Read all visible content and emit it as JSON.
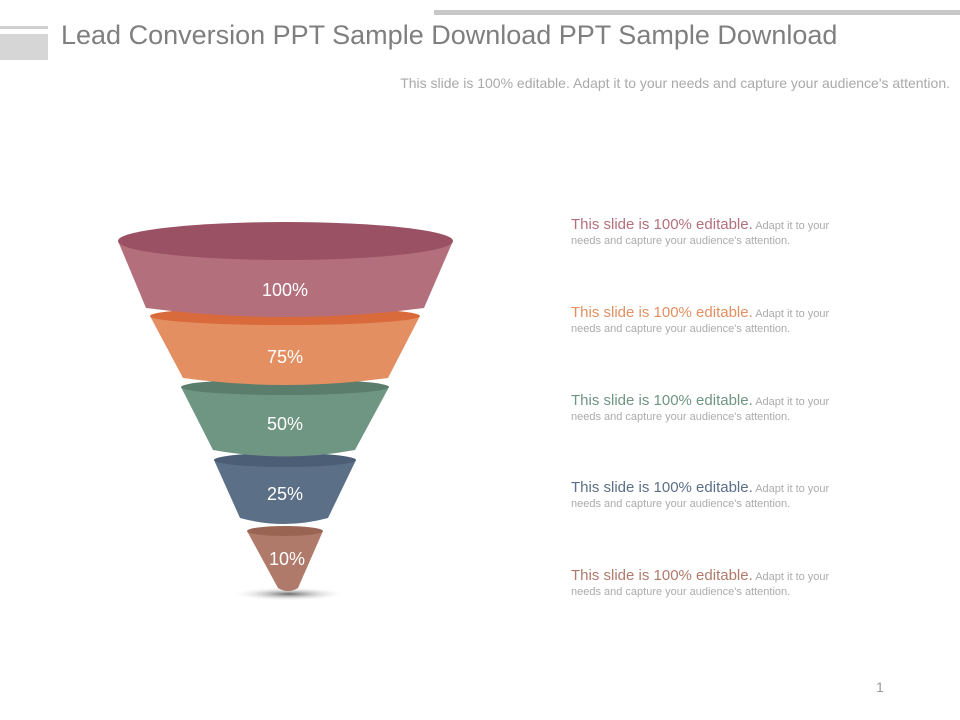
{
  "slide": {
    "title": "Lead Conversion PPT Sample Download PPT Sample Download",
    "subtitle": "This slide is 100% editable. Adapt it to your needs and capture your audience's attention.",
    "page_number": "1"
  },
  "funnel": {
    "stages": [
      {
        "label": "100%",
        "color": "#b46f7c",
        "rim": "#9a5163"
      },
      {
        "label": "75%",
        "color": "#e48f62",
        "rim": "#d96a3c"
      },
      {
        "label": "50%",
        "color": "#6f9583",
        "rim": "#5a7d6c"
      },
      {
        "label": "25%",
        "color": "#5b6f87",
        "rim": "#4c5e75"
      },
      {
        "label": "10%",
        "color": "#b07a6a",
        "rim": "#9a6453"
      }
    ]
  },
  "descriptions": [
    {
      "head": "This slide is 100% editable.",
      "body": " Adapt it to your needs and capture your audience's attention.",
      "color": "#b46f7c"
    },
    {
      "head": "This slide is 100% editable.",
      "body": " Adapt it to your needs and capture your audience's attention.",
      "color": "#e48f62"
    },
    {
      "head": "This slide is 100% editable.",
      "body": " Adapt it to your needs and capture your audience's attention.",
      "color": "#6f9583"
    },
    {
      "head": "This slide is 100% editable.",
      "body": " Adapt it to your needs and capture your audience's attention.",
      "color": "#5b6f87"
    },
    {
      "head": "This slide is 100% editable.",
      "body": " Adapt it to your needs and capture your audience's attention.",
      "color": "#b07a6a"
    }
  ]
}
